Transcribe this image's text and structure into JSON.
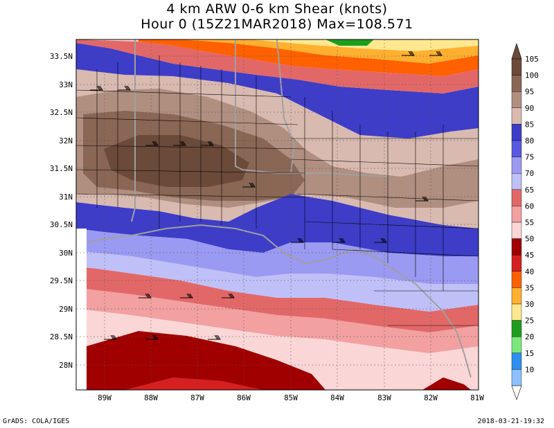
{
  "title": {
    "line1": "4 km ARW 0-6 km Shear (knots)",
    "line2": "Hour 0 (15Z21MAR2018) Max=108.571"
  },
  "latitude_labels": [
    "33.5N",
    "33N",
    "32.5N",
    "32N",
    "31.5N",
    "31N",
    "30.5N",
    "30N",
    "29.5N",
    "29N",
    "28.5N",
    "28N"
  ],
  "longitude_labels": [
    "89W",
    "88W",
    "87W",
    "86W",
    "85W",
    "84W",
    "83W",
    "82W",
    "81W"
  ],
  "colorbar": {
    "levels": [
      "105",
      "100",
      "95",
      "90",
      "85",
      "80",
      "75",
      "70",
      "65",
      "60",
      "55",
      "50",
      "45",
      "40",
      "35",
      "30",
      "25",
      "20",
      "15",
      "10"
    ],
    "colors": [
      "#6b4a3a",
      "#8a6655",
      "#b08f80",
      "#d9bab0",
      "#3d3dc8",
      "#5858e0",
      "#9a9af2",
      "#c0c0f8",
      "#e26868",
      "#f2a0a0",
      "#fbd6d6",
      "#a00000",
      "#d42020",
      "#ff6000",
      "#ffb030",
      "#ffe890",
      "#1e9e1e",
      "#7ce87c",
      "#2e8ff0",
      "#8cc0ff"
    ],
    "top_color": "#6b4a3a",
    "bottom_color": "#ffffff"
  },
  "footer": {
    "left": "GrADS: COLA/IGES",
    "right": "2018-03-21-19:32"
  }
}
